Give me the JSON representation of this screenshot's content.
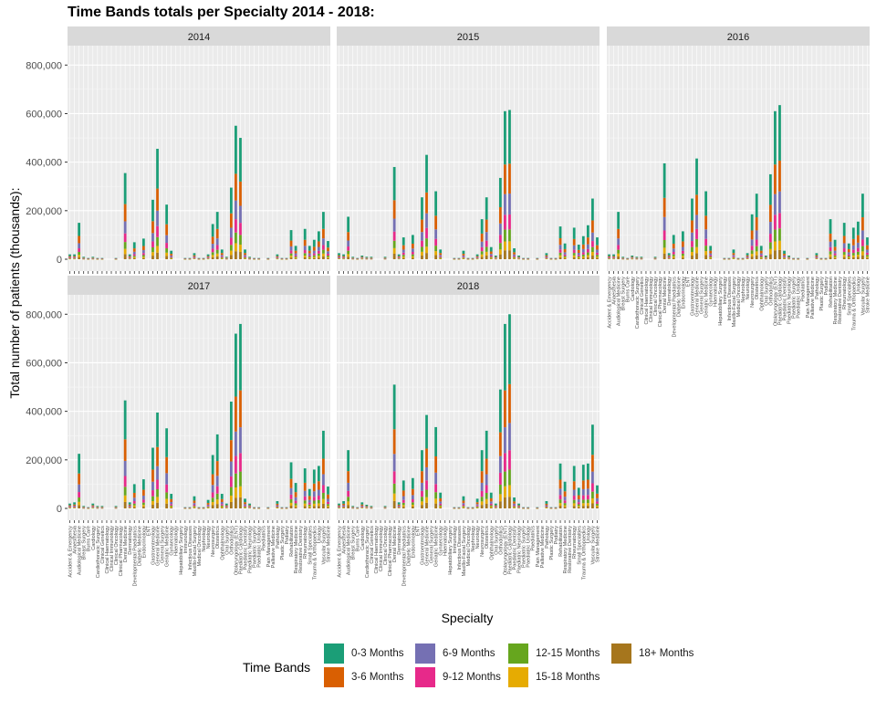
{
  "chart_data": {
    "type": "bar",
    "stacked": true,
    "title": "Time Bands totals per Specialty 2014 - 2018:",
    "xlabel": "Specialty",
    "ylabel": "Total number of patients (thousands):",
    "ylim": [
      0,
      880000
    ],
    "yticks": [
      0,
      200000,
      400000,
      600000,
      800000
    ],
    "ytick_labels": [
      "0",
      "200,000",
      "400,000",
      "600,000",
      "800,000"
    ],
    "grid": true,
    "legend": {
      "title": "Time Bands",
      "placement": "bottom",
      "entries": [
        "0-3 Months",
        "3-6 Months",
        "6-9 Months",
        "9-12 Months",
        "12-15 Months",
        "15-18 Months",
        "18+ Months"
      ]
    },
    "band_colors": [
      "#1b9e77",
      "#d95f02",
      "#7570b3",
      "#e7298a",
      "#66a61e",
      "#e6ab02",
      "#a6761d"
    ],
    "band_shares": [
      0.36,
      0.2,
      0.14,
      0.1,
      0.08,
      0.06,
      0.06
    ],
    "categories": [
      "Accident & Emergency",
      "Anaesthesia",
      "Audiological Medicine",
      "Breast Surgery",
      "Burns Care",
      "Cardiology",
      "Cardiothoracic Surgery",
      "Clinical Genetics",
      "Clinical Haematology",
      "Clinical Immunology",
      "Clinical Oncology",
      "Clinical Pharmacology",
      "Dental Medicine",
      "Dermatology",
      "Developmental Paediatrics",
      "Diabetic Medicine",
      "Endocrinology",
      "ENT",
      "Gastroenterology",
      "General Medicine",
      "General Surgery",
      "Geriatric Medicine",
      "Gynaecology",
      "Haematology",
      "Hepatobiliary Surgery",
      "Immunology",
      "Infectious Diseases",
      "Maxillo-Facial Surgery",
      "Medical Oncology",
      "Nephrology",
      "Neurology",
      "Neurosurgery",
      "Obstetrics",
      "Ophthalmology",
      "Oral Surgery",
      "Orthodontics",
      "Otolaryngology (ENT)",
      "Paediatric Cardiology",
      "Paediatric Dentistry",
      "Paediatric Neurology",
      "Paediatric Surgery",
      "Paediatric Urology",
      "Paediatrics",
      "Pain Management",
      "Palliative Medicine",
      "Pathology",
      "Plastic Surgery",
      "Podiatry",
      "Rehabilitation",
      "Respiratory Medicine",
      "Restorative Dentistry",
      "Rheumatology",
      "Small Specialties",
      "Trauma & Orthopaedics",
      "Urology",
      "Vascular Surgery",
      "Stroke Medicine"
    ],
    "panels": [
      {
        "label": "2014",
        "values": [
          20000,
          20000,
          150000,
          10000,
          5000,
          10000,
          5000,
          5000,
          0,
          0,
          5000,
          0,
          355000,
          20000,
          70000,
          0,
          85000,
          0,
          245000,
          455000,
          0,
          225000,
          35000,
          0,
          0,
          5000,
          5000,
          25000,
          5000,
          5000,
          20000,
          145000,
          195000,
          40000,
          10000,
          295000,
          550000,
          500000,
          40000,
          10000,
          5000,
          5000,
          0,
          5000,
          0,
          20000,
          5000,
          5000,
          120000,
          55000,
          0,
          125000,
          55000,
          80000,
          115000,
          195000,
          75000
        ]
      },
      {
        "label": "2015",
        "values": [
          25000,
          20000,
          175000,
          10000,
          5000,
          15000,
          10000,
          10000,
          0,
          0,
          10000,
          0,
          380000,
          20000,
          90000,
          0,
          100000,
          0,
          255000,
          430000,
          0,
          280000,
          40000,
          0,
          0,
          5000,
          5000,
          35000,
          5000,
          5000,
          20000,
          165000,
          255000,
          50000,
          15000,
          335000,
          610000,
          615000,
          45000,
          15000,
          5000,
          5000,
          0,
          5000,
          0,
          25000,
          5000,
          5000,
          135000,
          65000,
          0,
          130000,
          60000,
          95000,
          140000,
          250000,
          90000
        ]
      },
      {
        "label": "2016",
        "values": [
          20000,
          20000,
          195000,
          10000,
          5000,
          15000,
          10000,
          10000,
          0,
          0,
          10000,
          0,
          395000,
          25000,
          100000,
          0,
          115000,
          0,
          250000,
          415000,
          0,
          280000,
          55000,
          0,
          0,
          5000,
          5000,
          40000,
          5000,
          5000,
          25000,
          185000,
          270000,
          55000,
          15000,
          350000,
          610000,
          635000,
          35000,
          15000,
          5000,
          5000,
          0,
          5000,
          0,
          25000,
          5000,
          5000,
          165000,
          80000,
          0,
          150000,
          65000,
          130000,
          155000,
          270000,
          90000
        ]
      },
      {
        "label": "2017",
        "values": [
          20000,
          25000,
          225000,
          10000,
          5000,
          20000,
          10000,
          10000,
          0,
          0,
          10000,
          0,
          445000,
          25000,
          100000,
          0,
          120000,
          0,
          250000,
          395000,
          0,
          330000,
          60000,
          0,
          0,
          5000,
          5000,
          50000,
          5000,
          5000,
          35000,
          220000,
          305000,
          60000,
          20000,
          440000,
          720000,
          760000,
          40000,
          20000,
          5000,
          5000,
          0,
          5000,
          0,
          30000,
          5000,
          5000,
          190000,
          105000,
          0,
          165000,
          80000,
          160000,
          175000,
          320000,
          90000
        ]
      },
      {
        "label": "2018",
        "values": [
          20000,
          30000,
          240000,
          10000,
          5000,
          25000,
          15000,
          10000,
          0,
          0,
          10000,
          0,
          510000,
          25000,
          115000,
          0,
          125000,
          0,
          240000,
          385000,
          0,
          335000,
          65000,
          0,
          0,
          5000,
          5000,
          50000,
          5000,
          5000,
          40000,
          240000,
          320000,
          65000,
          20000,
          490000,
          760000,
          800000,
          45000,
          20000,
          5000,
          5000,
          0,
          5000,
          0,
          30000,
          5000,
          5000,
          185000,
          110000,
          0,
          175000,
          85000,
          180000,
          185000,
          345000,
          95000
        ]
      }
    ]
  }
}
